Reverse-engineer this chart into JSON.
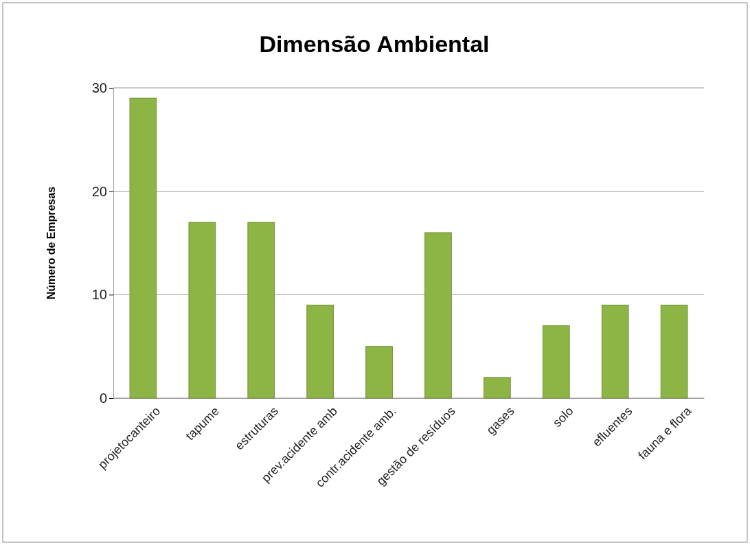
{
  "chart_data": {
    "type": "bar",
    "title": "Dimensão Ambiental",
    "ylabel": "Número de Empresas",
    "categories": [
      "projetocanteiro",
      "tapume",
      "estruturas",
      "prev.acidente amb",
      "contr.acidente amb.",
      "gestão de resíduos",
      "gases",
      "solo",
      "efluentes",
      "fauna e flora"
    ],
    "values": [
      29,
      17,
      17,
      9,
      5,
      16,
      2,
      7,
      9,
      9
    ],
    "color": "#8db545",
    "ylim": [
      0,
      30
    ],
    "yticks": [
      0,
      10,
      20,
      30
    ],
    "grid": "y"
  }
}
